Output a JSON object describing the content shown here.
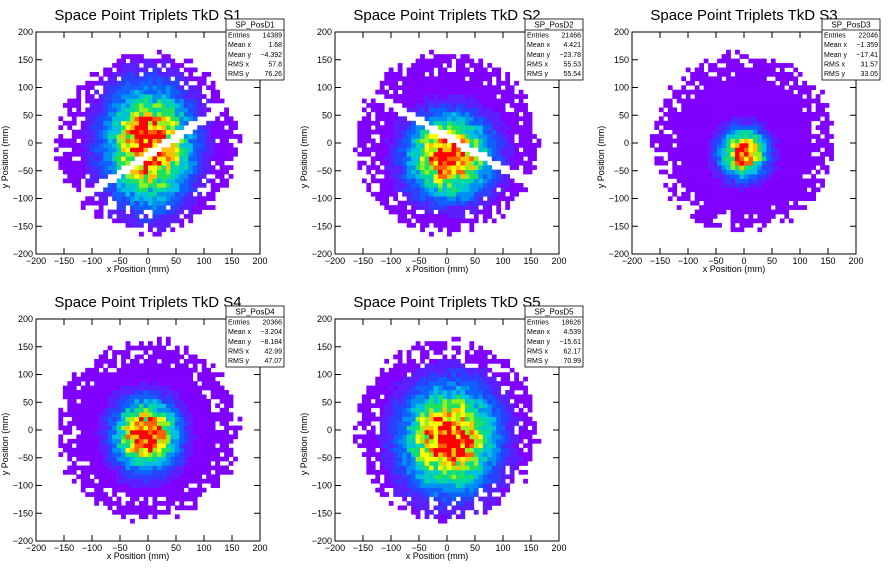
{
  "chart_data": [
    {
      "type": "heatmap",
      "title": "Space Point Triplets TkD S1",
      "xlabel": "x Position (mm)",
      "ylabel": "y Position (mm)",
      "xlim": [
        -200,
        200
      ],
      "ylim": [
        -200,
        200
      ],
      "x_ticks": [
        "−200",
        "−150",
        "−100",
        "−50",
        "0",
        "50",
        "100",
        "150",
        "200"
      ],
      "y_ticks": [
        "−200",
        "−150",
        "−100",
        "−50",
        "0",
        "50",
        "100",
        "150",
        "200"
      ],
      "stats": {
        "name": "SP_PosD1",
        "rows": [
          {
            "label": "Entries",
            "value": "14389"
          },
          {
            "label": "Mean x",
            "value": "1.68"
          },
          {
            "label": "Mean y",
            "value": "−4.392"
          },
          {
            "label": "RMS x",
            "value": "57.8"
          },
          {
            "label": "RMS y",
            "value": "76.26"
          }
        ]
      },
      "distribution": {
        "mean_x": 1.68,
        "mean_y": -4.392,
        "rms_x": 57.8,
        "rms_y": 76.26,
        "radius": 160,
        "gap_cuts": [
          {
            "angle_deg": 33,
            "offset": -18
          }
        ]
      }
    },
    {
      "type": "heatmap",
      "title": "Space Point Triplets TkD S2",
      "xlabel": "x Position (mm)",
      "ylabel": "y Position (mm)",
      "xlim": [
        -200,
        200
      ],
      "ylim": [
        -200,
        200
      ],
      "x_ticks": [
        "−200",
        "−150",
        "−100",
        "−50",
        "0",
        "50",
        "100",
        "150",
        "200"
      ],
      "y_ticks": [
        "−200",
        "−150",
        "−100",
        "−50",
        "0",
        "50",
        "100",
        "150",
        "200"
      ],
      "stats": {
        "name": "SP_PosD2",
        "rows": [
          {
            "label": "Entries",
            "value": "21466"
          },
          {
            "label": "Mean x",
            "value": "4.421"
          },
          {
            "label": "Mean y",
            "value": "−23.78"
          },
          {
            "label": "RMS x",
            "value": "55.53"
          },
          {
            "label": "RMS y",
            "value": "55.54"
          }
        ]
      },
      "distribution": {
        "mean_x": 4.421,
        "mean_y": -23.78,
        "rms_x": 55.53,
        "rms_y": 55.54,
        "radius": 160,
        "gap_cuts": [
          {
            "angle_deg": -30,
            "offset": 10
          }
        ]
      }
    },
    {
      "type": "heatmap",
      "title": "Space Point Triplets TkD S3",
      "xlabel": "x Position (mm)",
      "ylabel": "y Position (mm)",
      "xlim": [
        -200,
        200
      ],
      "ylim": [
        -200,
        200
      ],
      "x_ticks": [
        "−200",
        "−150",
        "−100",
        "−50",
        "0",
        "50",
        "100",
        "150",
        "200"
      ],
      "y_ticks": [
        "−200",
        "−150",
        "−100",
        "−50",
        "0",
        "50",
        "100",
        "150",
        "200"
      ],
      "stats": {
        "name": "SP_PosD3",
        "rows": [
          {
            "label": "Entries",
            "value": "22046"
          },
          {
            "label": "Mean x",
            "value": "−1.359"
          },
          {
            "label": "Mean y",
            "value": "−17.41"
          },
          {
            "label": "RMS x",
            "value": "31.57"
          },
          {
            "label": "RMS y",
            "value": "33.05"
          }
        ]
      },
      "distribution": {
        "mean_x": -1.359,
        "mean_y": -17.41,
        "rms_x": 31.57,
        "rms_y": 33.05,
        "radius": 160,
        "gap_cuts": []
      }
    },
    {
      "type": "heatmap",
      "title": "Space Point Triplets TkD S4",
      "xlabel": "x Position (mm)",
      "ylabel": "y Position (mm)",
      "xlim": [
        -200,
        200
      ],
      "ylim": [
        -200,
        200
      ],
      "x_ticks": [
        "−200",
        "−150",
        "−100",
        "−50",
        "0",
        "50",
        "100",
        "150",
        "200"
      ],
      "y_ticks": [
        "−200",
        "−150",
        "−100",
        "−50",
        "0",
        "50",
        "100",
        "150",
        "200"
      ],
      "stats": {
        "name": "SP_PosD4",
        "rows": [
          {
            "label": "Entries",
            "value": "20366"
          },
          {
            "label": "Mean x",
            "value": "−3.204"
          },
          {
            "label": "Mean y",
            "value": "−8.184"
          },
          {
            "label": "RMS x",
            "value": "42.99"
          },
          {
            "label": "RMS y",
            "value": "47.07"
          }
        ]
      },
      "distribution": {
        "mean_x": -3.204,
        "mean_y": -8.184,
        "rms_x": 42.99,
        "rms_y": 47.07,
        "radius": 160,
        "gap_cuts": []
      }
    },
    {
      "type": "heatmap",
      "title": "Space Point Triplets TkD S5",
      "xlabel": "x Position (mm)",
      "ylabel": "y Position (mm)",
      "xlim": [
        -200,
        200
      ],
      "ylim": [
        -200,
        200
      ],
      "x_ticks": [
        "−200",
        "−150",
        "−100",
        "−50",
        "0",
        "50",
        "100",
        "150",
        "200"
      ],
      "y_ticks": [
        "−200",
        "−150",
        "−100",
        "−50",
        "0",
        "50",
        "100",
        "150",
        "200"
      ],
      "stats": {
        "name": "SP_PosD5",
        "rows": [
          {
            "label": "Entries",
            "value": "18626"
          },
          {
            "label": "Mean x",
            "value": "4.539"
          },
          {
            "label": "Mean y",
            "value": "−15.61"
          },
          {
            "label": "RMS x",
            "value": "62.17"
          },
          {
            "label": "RMS y",
            "value": "70.99"
          }
        ]
      },
      "distribution": {
        "mean_x": 4.539,
        "mean_y": -15.61,
        "rms_x": 62.17,
        "rms_y": 70.99,
        "radius": 160,
        "gap_cuts": []
      }
    }
  ],
  "colors": {
    "palette": [
      "#8000ff",
      "#5a1fff",
      "#2a40ff",
      "#1060ff",
      "#0090f0",
      "#00c0e0",
      "#00d8a0",
      "#20e060",
      "#90f020",
      "#ffff00",
      "#ffc000",
      "#ff6000",
      "#ff0000"
    ],
    "background": "#ffffff",
    "frame": "#000000"
  }
}
